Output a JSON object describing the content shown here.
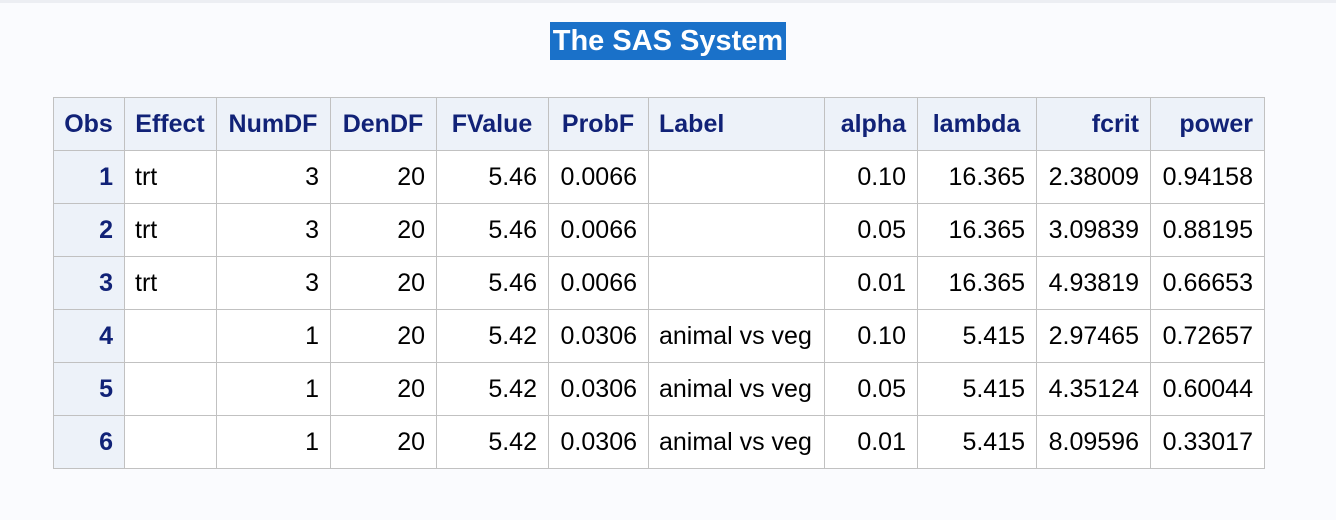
{
  "title": "The SAS System",
  "table": {
    "headers": [
      "Obs",
      "Effect",
      "NumDF",
      "DenDF",
      "FValue",
      "ProbF",
      "Label",
      "alpha",
      "lambda",
      "fcrit",
      "power"
    ],
    "rows": [
      [
        "1",
        "trt",
        "3",
        "20",
        "5.46",
        "0.0066",
        "",
        "0.10",
        "16.365",
        "2.38009",
        "0.94158"
      ],
      [
        "2",
        "trt",
        "3",
        "20",
        "5.46",
        "0.0066",
        "",
        "0.05",
        "16.365",
        "3.09839",
        "0.88195"
      ],
      [
        "3",
        "trt",
        "3",
        "20",
        "5.46",
        "0.0066",
        "",
        "0.01",
        "16.365",
        "4.93819",
        "0.66653"
      ],
      [
        "4",
        "",
        "1",
        "20",
        "5.42",
        "0.0306",
        "animal vs veg",
        "0.10",
        "5.415",
        "2.97465",
        "0.72657"
      ],
      [
        "5",
        "",
        "1",
        "20",
        "5.42",
        "0.0306",
        "animal vs veg",
        "0.05",
        "5.415",
        "4.35124",
        "0.60044"
      ],
      [
        "6",
        "",
        "1",
        "20",
        "5.42",
        "0.0306",
        "animal vs veg",
        "0.01",
        "5.415",
        "8.09596",
        "0.33017"
      ]
    ]
  }
}
